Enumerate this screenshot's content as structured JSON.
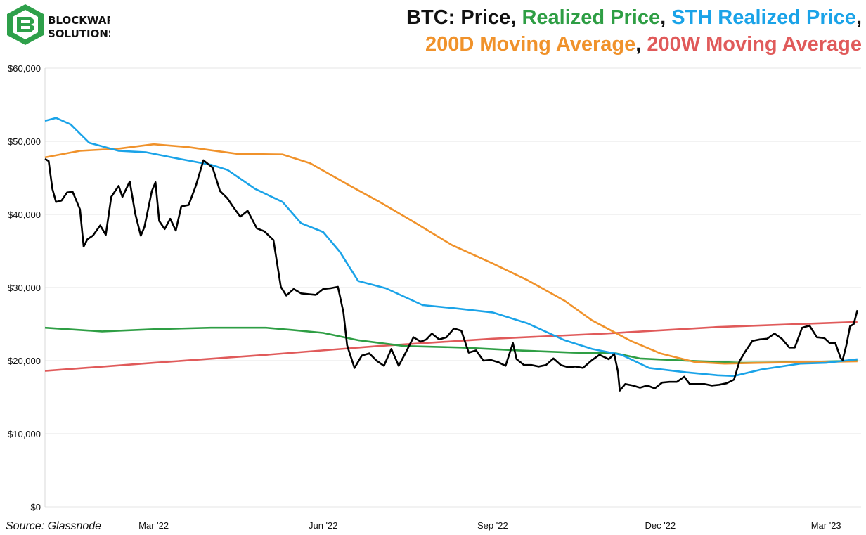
{
  "logo": {
    "line1": "BLOCKWARE",
    "line2": "SOLUTIONS"
  },
  "title": {
    "prefix": "BTC: ",
    "parts": [
      {
        "text": "Price",
        "color": "#111111"
      },
      {
        "text": ", ",
        "color": "#111111"
      },
      {
        "text": "Realized Price",
        "color": "#2e9e44"
      },
      {
        "text": ", ",
        "color": "#111111"
      },
      {
        "text": "STH Realized Price",
        "color": "#1aa3e8"
      },
      {
        "text": ",",
        "color": "#111111"
      }
    ],
    "parts2": [
      {
        "text": "200D Moving Average",
        "color": "#f0922b"
      },
      {
        "text": ", ",
        "color": "#111111"
      },
      {
        "text": "200W Moving Average",
        "color": "#e05a5a"
      }
    ]
  },
  "source": "Source: Glassnode",
  "chart_data": {
    "type": "line",
    "y_ticks": [
      "$0",
      "$10,000",
      "$20,000",
      "$30,000",
      "$40,000",
      "$50,000",
      "$60,000"
    ],
    "y_tick_values": [
      0,
      10000,
      20000,
      30000,
      40000,
      50000,
      60000
    ],
    "ylim": [
      0,
      60000
    ],
    "x_ticks": [
      "Mar '22",
      "Jun '22",
      "Sep '22",
      "Dec '22",
      "Mar '23"
    ],
    "x_tick_dates": [
      "2022-03-01",
      "2022-06-01",
      "2022-09-01",
      "2022-12-01",
      "2023-03-01"
    ],
    "xlim": [
      "2022-01-01",
      "2023-03-20"
    ],
    "grid": true,
    "series": [
      {
        "name": "Price",
        "color": "#000000",
        "points": [
          [
            "2022-01-01",
            47600
          ],
          [
            "2022-01-03",
            47300
          ],
          [
            "2022-01-05",
            43500
          ],
          [
            "2022-01-07",
            41700
          ],
          [
            "2022-01-10",
            41900
          ],
          [
            "2022-01-13",
            43000
          ],
          [
            "2022-01-16",
            43100
          ],
          [
            "2022-01-20",
            40700
          ],
          [
            "2022-01-22",
            35600
          ],
          [
            "2022-01-24",
            36600
          ],
          [
            "2022-01-27",
            37100
          ],
          [
            "2022-01-31",
            38500
          ],
          [
            "2022-02-03",
            37200
          ],
          [
            "2022-02-06",
            42400
          ],
          [
            "2022-02-10",
            43900
          ],
          [
            "2022-02-12",
            42400
          ],
          [
            "2022-02-16",
            44500
          ],
          [
            "2022-02-19",
            40100
          ],
          [
            "2022-02-22",
            37100
          ],
          [
            "2022-02-24",
            38300
          ],
          [
            "2022-02-28",
            43200
          ],
          [
            "2022-03-02",
            44400
          ],
          [
            "2022-03-04",
            39100
          ],
          [
            "2022-03-07",
            38000
          ],
          [
            "2022-03-10",
            39400
          ],
          [
            "2022-03-13",
            37800
          ],
          [
            "2022-03-16",
            41100
          ],
          [
            "2022-03-20",
            41300
          ],
          [
            "2022-03-24",
            44000
          ],
          [
            "2022-03-28",
            47400
          ],
          [
            "2022-04-02",
            46400
          ],
          [
            "2022-04-06",
            43200
          ],
          [
            "2022-04-10",
            42200
          ],
          [
            "2022-04-13",
            41100
          ],
          [
            "2022-04-17",
            39700
          ],
          [
            "2022-04-21",
            40500
          ],
          [
            "2022-04-26",
            38100
          ],
          [
            "2022-04-30",
            37700
          ],
          [
            "2022-05-05",
            36500
          ],
          [
            "2022-05-09",
            30100
          ],
          [
            "2022-05-12",
            28900
          ],
          [
            "2022-05-16",
            29800
          ],
          [
            "2022-05-20",
            29200
          ],
          [
            "2022-05-24",
            29100
          ],
          [
            "2022-05-28",
            29000
          ],
          [
            "2022-06-01",
            29800
          ],
          [
            "2022-06-05",
            29900
          ],
          [
            "2022-06-09",
            30100
          ],
          [
            "2022-06-12",
            26600
          ],
          [
            "2022-06-14",
            22100
          ],
          [
            "2022-06-18",
            19000
          ],
          [
            "2022-06-22",
            20700
          ],
          [
            "2022-06-26",
            21000
          ],
          [
            "2022-06-30",
            20000
          ],
          [
            "2022-07-04",
            19300
          ],
          [
            "2022-07-08",
            21600
          ],
          [
            "2022-07-12",
            19300
          ],
          [
            "2022-07-16",
            21200
          ],
          [
            "2022-07-20",
            23200
          ],
          [
            "2022-07-24",
            22600
          ],
          [
            "2022-07-27",
            22900
          ],
          [
            "2022-07-30",
            23700
          ],
          [
            "2022-08-03",
            22900
          ],
          [
            "2022-08-07",
            23200
          ],
          [
            "2022-08-11",
            24400
          ],
          [
            "2022-08-15",
            24100
          ],
          [
            "2022-08-19",
            21100
          ],
          [
            "2022-08-23",
            21400
          ],
          [
            "2022-08-27",
            20000
          ],
          [
            "2022-08-31",
            20100
          ],
          [
            "2022-09-04",
            19800
          ],
          [
            "2022-09-08",
            19300
          ],
          [
            "2022-09-12",
            22400
          ],
          [
            "2022-09-14",
            20200
          ],
          [
            "2022-09-18",
            19400
          ],
          [
            "2022-09-22",
            19400
          ],
          [
            "2022-09-26",
            19200
          ],
          [
            "2022-09-30",
            19400
          ],
          [
            "2022-10-04",
            20300
          ],
          [
            "2022-10-08",
            19400
          ],
          [
            "2022-10-12",
            19100
          ],
          [
            "2022-10-16",
            19200
          ],
          [
            "2022-10-20",
            19000
          ],
          [
            "2022-10-25",
            20100
          ],
          [
            "2022-10-29",
            20800
          ],
          [
            "2022-11-03",
            20200
          ],
          [
            "2022-11-06",
            20900
          ],
          [
            "2022-11-08",
            18500
          ],
          [
            "2022-11-09",
            15900
          ],
          [
            "2022-11-12",
            16800
          ],
          [
            "2022-11-16",
            16600
          ],
          [
            "2022-11-20",
            16300
          ],
          [
            "2022-11-24",
            16600
          ],
          [
            "2022-11-28",
            16200
          ],
          [
            "2022-12-02",
            17000
          ],
          [
            "2022-12-06",
            17100
          ],
          [
            "2022-12-10",
            17100
          ],
          [
            "2022-12-14",
            17800
          ],
          [
            "2022-12-17",
            16800
          ],
          [
            "2022-12-21",
            16800
          ],
          [
            "2022-12-25",
            16800
          ],
          [
            "2022-12-29",
            16600
          ],
          [
            "2023-01-02",
            16700
          ],
          [
            "2023-01-06",
            16900
          ],
          [
            "2023-01-10",
            17400
          ],
          [
            "2023-01-13",
            19900
          ],
          [
            "2023-01-16",
            21200
          ],
          [
            "2023-01-20",
            22700
          ],
          [
            "2023-01-24",
            22900
          ],
          [
            "2023-01-28",
            23000
          ],
          [
            "2023-02-01",
            23700
          ],
          [
            "2023-02-05",
            23000
          ],
          [
            "2023-02-09",
            21800
          ],
          [
            "2023-02-12",
            21800
          ],
          [
            "2023-02-16",
            24500
          ],
          [
            "2023-02-20",
            24800
          ],
          [
            "2023-02-24",
            23200
          ],
          [
            "2023-02-28",
            23100
          ],
          [
            "2023-03-03",
            22400
          ],
          [
            "2023-03-06",
            22400
          ],
          [
            "2023-03-09",
            20300
          ],
          [
            "2023-03-10",
            20100
          ],
          [
            "2023-03-12",
            22100
          ],
          [
            "2023-03-14",
            24700
          ],
          [
            "2023-03-16",
            25000
          ],
          [
            "2023-03-18",
            26900
          ]
        ]
      },
      {
        "name": "Realized Price",
        "color": "#2e9e44",
        "points": [
          [
            "2022-01-01",
            24500
          ],
          [
            "2022-02-01",
            24000
          ],
          [
            "2022-03-01",
            24300
          ],
          [
            "2022-04-01",
            24500
          ],
          [
            "2022-05-01",
            24500
          ],
          [
            "2022-05-15",
            24200
          ],
          [
            "2022-06-01",
            23800
          ],
          [
            "2022-06-20",
            22800
          ],
          [
            "2022-07-15",
            22000
          ],
          [
            "2022-08-15",
            21800
          ],
          [
            "2022-09-15",
            21400
          ],
          [
            "2022-10-15",
            21100
          ],
          [
            "2022-11-07",
            21000
          ],
          [
            "2022-11-20",
            20300
          ],
          [
            "2022-12-15",
            20000
          ],
          [
            "2023-01-15",
            19700
          ],
          [
            "2023-02-15",
            19800
          ],
          [
            "2023-03-18",
            20000
          ]
        ]
      },
      {
        "name": "STH Realized Price",
        "color": "#1aa3e8",
        "points": [
          [
            "2022-01-01",
            52800
          ],
          [
            "2022-01-07",
            53200
          ],
          [
            "2022-01-15",
            52300
          ],
          [
            "2022-01-25",
            49800
          ],
          [
            "2022-02-10",
            48700
          ],
          [
            "2022-02-25",
            48500
          ],
          [
            "2022-03-15",
            47600
          ],
          [
            "2022-04-01",
            46800
          ],
          [
            "2022-04-10",
            46100
          ],
          [
            "2022-04-25",
            43500
          ],
          [
            "2022-05-10",
            41700
          ],
          [
            "2022-05-20",
            38800
          ],
          [
            "2022-06-01",
            37600
          ],
          [
            "2022-06-10",
            34900
          ],
          [
            "2022-06-20",
            30900
          ],
          [
            "2022-07-05",
            29900
          ],
          [
            "2022-07-25",
            27600
          ],
          [
            "2022-08-10",
            27200
          ],
          [
            "2022-09-01",
            26600
          ],
          [
            "2022-09-20",
            25100
          ],
          [
            "2022-10-10",
            22800
          ],
          [
            "2022-10-25",
            21600
          ],
          [
            "2022-11-10",
            20800
          ],
          [
            "2022-11-25",
            19000
          ],
          [
            "2022-12-15",
            18400
          ],
          [
            "2023-01-01",
            18000
          ],
          [
            "2023-01-10",
            17900
          ],
          [
            "2023-01-25",
            18800
          ],
          [
            "2023-02-15",
            19600
          ],
          [
            "2023-03-01",
            19700
          ],
          [
            "2023-03-18",
            20200
          ]
        ]
      },
      {
        "name": "200D Moving Average",
        "color": "#f0922b",
        "points": [
          [
            "2022-01-01",
            47800
          ],
          [
            "2022-01-20",
            48700
          ],
          [
            "2022-02-10",
            49000
          ],
          [
            "2022-03-01",
            49600
          ],
          [
            "2022-03-20",
            49200
          ],
          [
            "2022-04-15",
            48300
          ],
          [
            "2022-05-10",
            48200
          ],
          [
            "2022-05-25",
            47000
          ],
          [
            "2022-06-15",
            44000
          ],
          [
            "2022-07-01",
            41800
          ],
          [
            "2022-07-20",
            39000
          ],
          [
            "2022-08-10",
            35800
          ],
          [
            "2022-09-01",
            33300
          ],
          [
            "2022-09-20",
            31000
          ],
          [
            "2022-10-10",
            28200
          ],
          [
            "2022-10-25",
            25500
          ],
          [
            "2022-11-15",
            22700
          ],
          [
            "2022-12-01",
            21000
          ],
          [
            "2022-12-20",
            19800
          ],
          [
            "2023-01-05",
            19600
          ],
          [
            "2023-01-25",
            19700
          ],
          [
            "2023-02-20",
            19800
          ],
          [
            "2023-03-18",
            19900
          ]
        ]
      },
      {
        "name": "200W Moving Average",
        "color": "#e05a5a",
        "points": [
          [
            "2022-01-01",
            18600
          ],
          [
            "2022-03-01",
            19700
          ],
          [
            "2022-05-01",
            20800
          ],
          [
            "2022-07-01",
            22000
          ],
          [
            "2022-09-01",
            23000
          ],
          [
            "2022-11-01",
            23700
          ],
          [
            "2023-01-01",
            24600
          ],
          [
            "2023-03-18",
            25300
          ]
        ]
      }
    ]
  }
}
